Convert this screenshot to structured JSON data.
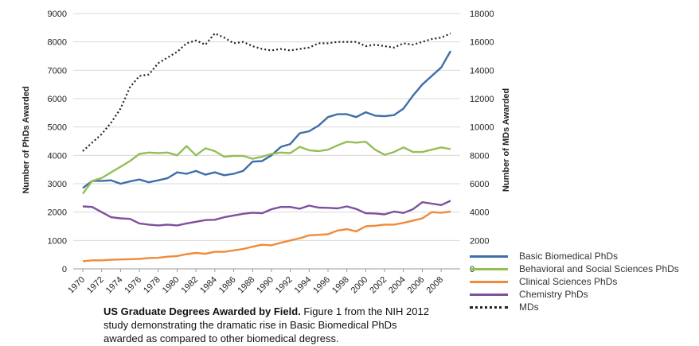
{
  "chart_data": {
    "type": "line",
    "x": [
      1970,
      1971,
      1972,
      1973,
      1974,
      1975,
      1976,
      1977,
      1978,
      1979,
      1980,
      1981,
      1982,
      1983,
      1984,
      1985,
      1986,
      1987,
      1988,
      1989,
      1990,
      1991,
      1992,
      1993,
      1994,
      1995,
      1996,
      1997,
      1998,
      1999,
      2000,
      2001,
      2002,
      2003,
      2004,
      2005,
      2006,
      2007,
      2008,
      2009
    ],
    "xticks": [
      "1970",
      "1972",
      "1974",
      "1976",
      "1978",
      "1980",
      "1982",
      "1984",
      "1986",
      "1988",
      "1990",
      "1992",
      "1994",
      "1996",
      "1998",
      "2000",
      "2002",
      "2004",
      "2006",
      "2008"
    ],
    "ylabel_left": "Number of PhDs Awarded",
    "ylabel_right": "Number of MDs Awarded",
    "ylim_left": [
      0,
      9000
    ],
    "ylim_right": [
      0,
      18000
    ],
    "yticks_left": [
      "0",
      "1000",
      "2000",
      "3000",
      "4000",
      "5000",
      "6000",
      "7000",
      "8000",
      "9000"
    ],
    "yticks_right": [
      "0",
      "2000",
      "4000",
      "6000",
      "8000",
      "10000",
      "12000",
      "14000",
      "16000",
      "18000"
    ],
    "grid": "horizontal",
    "legend_position": "bottom-right",
    "series": [
      {
        "name": "Basic Biomedical PhDs",
        "axis": "left",
        "color": "#3d6ea8",
        "values": [
          2850,
          3100,
          3100,
          3120,
          3000,
          3080,
          3150,
          3050,
          3120,
          3200,
          3400,
          3350,
          3450,
          3320,
          3400,
          3300,
          3350,
          3450,
          3780,
          3800,
          4000,
          4300,
          4400,
          4780,
          4850,
          5050,
          5350,
          5450,
          5450,
          5350,
          5520,
          5400,
          5380,
          5420,
          5650,
          6100,
          6500,
          6800,
          7100,
          7680
        ]
      },
      {
        "name": "Behavioral and Social Sciences PhDs",
        "axis": "left",
        "color": "#93bf55",
        "values": [
          2650,
          3100,
          3200,
          3400,
          3600,
          3800,
          4050,
          4100,
          4080,
          4100,
          4000,
          4330,
          4000,
          4250,
          4150,
          3950,
          3980,
          3980,
          3880,
          3950,
          4050,
          4100,
          4080,
          4300,
          4180,
          4150,
          4200,
          4350,
          4480,
          4450,
          4480,
          4200,
          4020,
          4120,
          4280,
          4120,
          4120,
          4200,
          4280,
          4220
        ]
      },
      {
        "name": "Clinical Sciences PhDs",
        "axis": "left",
        "color": "#ef8b38",
        "values": [
          270,
          300,
          300,
          320,
          330,
          340,
          350,
          380,
          390,
          430,
          450,
          520,
          560,
          530,
          600,
          600,
          650,
          700,
          780,
          850,
          830,
          920,
          1000,
          1080,
          1180,
          1200,
          1220,
          1350,
          1400,
          1320,
          1500,
          1520,
          1560,
          1560,
          1620,
          1700,
          1780,
          2000,
          1980,
          2020
        ]
      },
      {
        "name": "Chemistry PhDs",
        "axis": "left",
        "color": "#7e4f9e",
        "values": [
          2200,
          2180,
          2000,
          1820,
          1780,
          1760,
          1600,
          1560,
          1530,
          1560,
          1530,
          1600,
          1660,
          1720,
          1730,
          1820,
          1880,
          1940,
          1980,
          1960,
          2100,
          2180,
          2180,
          2120,
          2230,
          2160,
          2150,
          2130,
          2200,
          2110,
          1960,
          1950,
          1920,
          2020,
          1970,
          2100,
          2350,
          2300,
          2250,
          2400
        ]
      },
      {
        "name": "MDs",
        "axis": "right",
        "color": "#222222",
        "dash": "dotted",
        "values": [
          8300,
          8900,
          9500,
          10300,
          11300,
          12800,
          13600,
          13700,
          14500,
          14900,
          15300,
          15900,
          16100,
          15800,
          16600,
          16300,
          15900,
          16000,
          15700,
          15500,
          15400,
          15500,
          15400,
          15500,
          15600,
          15900,
          15900,
          16000,
          16000,
          16000,
          15700,
          15800,
          15700,
          15600,
          15900,
          15800,
          16000,
          16200,
          16300,
          16600
        ]
      }
    ]
  },
  "caption": {
    "title": "US Graduate Degrees Awarded by Field.",
    "text": " Figure 1 from the NIH 2012 study demonstrating the dramatic rise in Basic Biomedical PhDs awarded as compared to other biomedical degress."
  }
}
